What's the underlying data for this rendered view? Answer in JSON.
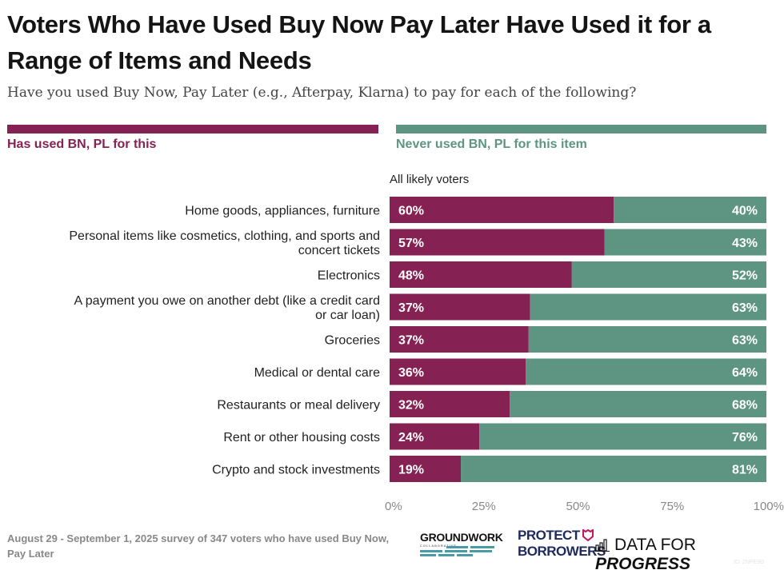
{
  "title": "Voters Who Have Used Buy Now Pay Later Have Used it for a Range of Items and Needs",
  "subtitle": "Have you used Buy Now, Pay Later (e.g., Afterpay, Klarna) to pay for each of the following?",
  "colors": {
    "used": "#862153",
    "never": "#5e9582"
  },
  "legend": {
    "used_label": "Has used BN, PL for this",
    "never_label": "Never used BN, PL for this item"
  },
  "group_label": "All likely voters",
  "chart_data": {
    "type": "bar",
    "orientation": "horizontal",
    "stacked": true,
    "title": "Voters Who Have Used Buy Now Pay Later Have Used it for a Range of Items and Needs",
    "subtitle": "Have you used Buy Now, Pay Later (e.g., Afterpay, Klarna) to pay for each of the following?",
    "xlabel": "",
    "ylabel": "",
    "xlim": [
      0,
      100
    ],
    "x_ticks": [
      "0%",
      "25%",
      "50%",
      "75%",
      "100%"
    ],
    "legend_position": "top",
    "categories": [
      [
        "Home goods, appliances, furniture"
      ],
      [
        "Personal items like cosmetics, clothing, and sports and",
        "concert tickets"
      ],
      [
        "Electronics"
      ],
      [
        "A payment you owe on another debt (like a credit card",
        "or car loan)"
      ],
      [
        "Groceries"
      ],
      [
        "Medical or dental care"
      ],
      [
        "Restaurants or meal delivery"
      ],
      [
        "Rent or other housing costs"
      ],
      [
        "Crypto and stock investments"
      ]
    ],
    "series": [
      {
        "name": "Has used BN, PL for this",
        "values": [
          60,
          57,
          48,
          37,
          37,
          36,
          32,
          24,
          19
        ],
        "bar_fraction": [
          59.5,
          57,
          48.3,
          37.3,
          36.9,
          36.1,
          31.9,
          23.8,
          18.9
        ]
      },
      {
        "name": "Never used BN, PL for this item",
        "values": [
          40,
          43,
          52,
          63,
          63,
          64,
          68,
          76,
          81
        ]
      }
    ]
  },
  "footnote": "August 29 - September 1, 2025 survey of 347 voters who have used Buy Now, Pay Later",
  "logos": {
    "groundwork": "GROUNDWORK",
    "groundwork_sub": "COLLABORATIVE",
    "protect_line1": "PROTECT",
    "protect_line2": "BORROWERS",
    "dfp_regular": "DATA FOR ",
    "dfp_bold": "PROGRESS"
  },
  "id_tag": "ID: 2NPE9D"
}
